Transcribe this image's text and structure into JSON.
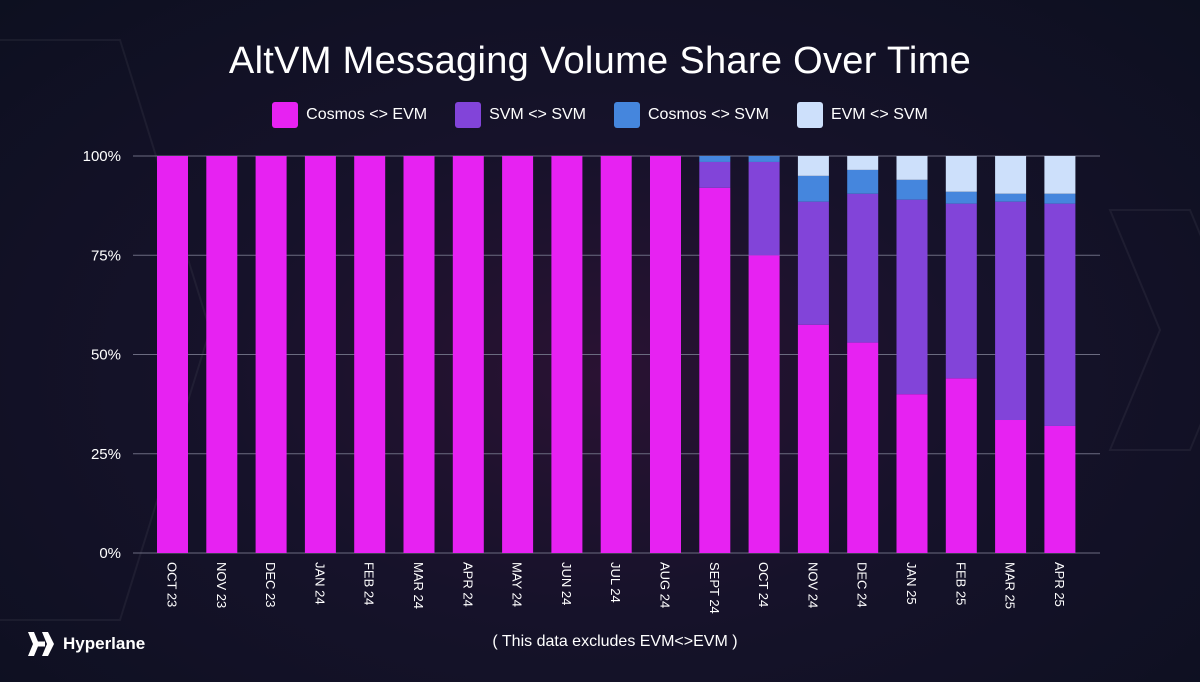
{
  "brand": {
    "name": "Hyperlane",
    "logo_icon": "hyperlane-logo-icon"
  },
  "footnote": "( This data excludes EVM<>EVM )",
  "colors": {
    "cosmos_evm": "#e722f2",
    "svm_svm": "#8244d9",
    "cosmos_svm": "#4586dd",
    "evm_svm": "#cde0fb",
    "grid": "#6b6b80"
  },
  "chart_data": {
    "type": "bar",
    "stacked": true,
    "title": "AltVM Messaging Volume Share Over Time",
    "xlabel": "",
    "ylabel": "",
    "ylim": [
      0,
      100
    ],
    "y_ticks": [
      "0%",
      "25%",
      "50%",
      "75%",
      "100%"
    ],
    "legend_position": "top-center",
    "categories": [
      "OCT 23",
      "NOV 23",
      "DEC 23",
      "JAN 24",
      "FEB 24",
      "MAR 24",
      "APR 24",
      "MAY 24",
      "JUN 24",
      "JUL 24",
      "AUG 24",
      "SEPT 24",
      "OCT 24",
      "NOV 24",
      "DEC 24",
      "JAN 25",
      "FEB 25",
      "MAR 25",
      "APR 25"
    ],
    "series": [
      {
        "name": "Cosmos <> EVM",
        "color_key": "cosmos_evm",
        "values": [
          100,
          100,
          100,
          100,
          100,
          100,
          100,
          100,
          100,
          100,
          100,
          92,
          75,
          57.5,
          53,
          40,
          44,
          33.5,
          32
        ]
      },
      {
        "name": "SVM <> SVM",
        "color_key": "svm_svm",
        "values": [
          0,
          0,
          0,
          0,
          0,
          0,
          0,
          0,
          0,
          0,
          0,
          6.5,
          23.5,
          31,
          37.5,
          49,
          44,
          55,
          56
        ]
      },
      {
        "name": "Cosmos <> SVM",
        "color_key": "cosmos_svm",
        "values": [
          0,
          0,
          0,
          0,
          0,
          0,
          0,
          0,
          0,
          0,
          0,
          1.5,
          1.5,
          6.5,
          6,
          5,
          3,
          2,
          2.5
        ]
      },
      {
        "name": "EVM <> SVM",
        "color_key": "evm_svm",
        "values": [
          0,
          0,
          0,
          0,
          0,
          0,
          0,
          0,
          0,
          0,
          0,
          0,
          0,
          5,
          3.5,
          6,
          9,
          9.5,
          9.5
        ]
      }
    ]
  }
}
